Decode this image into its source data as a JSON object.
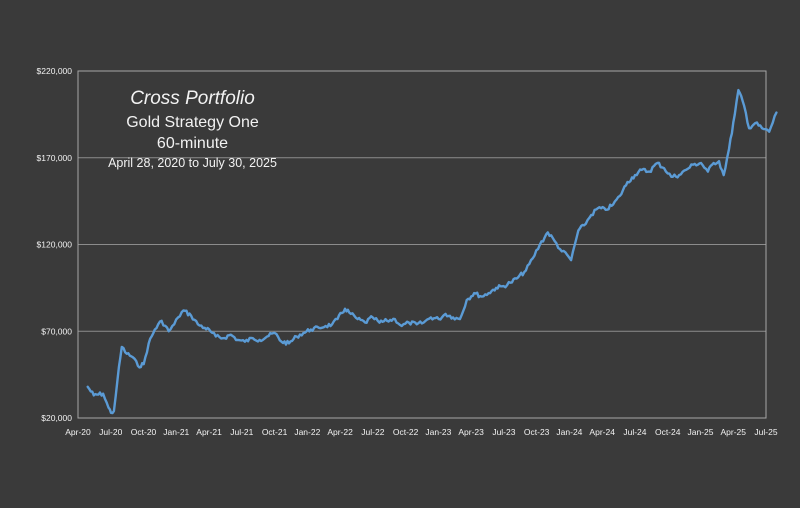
{
  "title_block": {
    "title": "Cross Portfolio",
    "subtitle_1": "Gold Strategy One",
    "subtitle_2": "60-minute",
    "date_range": "April 28,  2020 to July 30, 2025"
  },
  "colors": {
    "background": "#3a3a3a",
    "line": "#5b9bd5",
    "grid": "#8c8c8c",
    "text": "#f2f2f2"
  },
  "chart_data": {
    "type": "line",
    "title": "Cross Portfolio",
    "subtitle": "Gold Strategy One 60-minute April 28,  2020 to July 30, 2025",
    "xlabel": "",
    "ylabel": "",
    "ylim": [
      20000,
      220000
    ],
    "xlim": [
      "2020-04-01",
      "2025-07-01"
    ],
    "grid": "horizontal",
    "legend": "none",
    "x_tick_labels": [
      "Apr-20",
      "Jul-20",
      "Oct-20",
      "Jan-21",
      "Apr-21",
      "Jul-21",
      "Oct-21",
      "Jan-22",
      "Apr-22",
      "Jul-22",
      "Oct-22",
      "Jan-23",
      "Apr-23",
      "Jul-23",
      "Oct-23",
      "Jan-24",
      "Apr-24",
      "Jul-24",
      "Oct-24",
      "Jan-25",
      "Apr-25",
      "Jul-25"
    ],
    "y_tick_labels": [
      "$20,000",
      "$70,000",
      "$120,000",
      "$170,000",
      "$220,000"
    ],
    "y_tick_values": [
      20000,
      70000,
      120000,
      170000,
      220000
    ],
    "series": [
      {
        "x": [
          "2020-04-28",
          "2020-05-15",
          "2020-06-10",
          "2020-06-25",
          "2020-07-02",
          "2020-07-10",
          "2020-07-20",
          "2020-08-01",
          "2020-08-15",
          "2020-09-01",
          "2020-09-15",
          "2020-10-01",
          "2020-10-15",
          "2020-11-01",
          "2020-11-20",
          "2020-12-10",
          "2020-12-25",
          "2021-01-05",
          "2021-01-20",
          "2021-02-10",
          "2021-03-01",
          "2021-03-20",
          "2021-04-05",
          "2021-04-20",
          "2021-05-10",
          "2021-06-01",
          "2021-06-20",
          "2021-07-10",
          "2021-08-01",
          "2021-08-20",
          "2021-09-10",
          "2021-10-01",
          "2021-10-20",
          "2021-11-10",
          "2021-12-01",
          "2021-12-20",
          "2022-01-10",
          "2022-02-01",
          "2022-02-20",
          "2022-03-10",
          "2022-03-25",
          "2022-04-15",
          "2022-05-01",
          "2022-05-20",
          "2022-06-10",
          "2022-07-01",
          "2022-07-20",
          "2022-08-10",
          "2022-09-01",
          "2022-09-20",
          "2022-10-10",
          "2022-11-01",
          "2022-11-20",
          "2022-12-10",
          "2023-01-01",
          "2023-01-20",
          "2023-02-10",
          "2023-03-01",
          "2023-03-20",
          "2023-04-10",
          "2023-05-01",
          "2023-05-20",
          "2023-06-10",
          "2023-07-01",
          "2023-07-20",
          "2023-08-10",
          "2023-09-01",
          "2023-09-20",
          "2023-10-10",
          "2023-11-01",
          "2023-11-20",
          "2023-12-10",
          "2023-12-25",
          "2024-01-05",
          "2024-01-25",
          "2024-02-10",
          "2024-03-01",
          "2024-03-20",
          "2024-04-10",
          "2024-05-01",
          "2024-05-20",
          "2024-06-10",
          "2024-07-01",
          "2024-07-20",
          "2024-08-10",
          "2024-09-01",
          "2024-09-20",
          "2024-10-10",
          "2024-11-01",
          "2024-11-20",
          "2024-12-10",
          "2025-01-01",
          "2025-01-20",
          "2025-02-05",
          "2025-02-20",
          "2025-03-05",
          "2025-03-20",
          "2025-04-05",
          "2025-04-15",
          "2025-05-01",
          "2025-05-15",
          "2025-06-01",
          "2025-06-20",
          "2025-07-10",
          "2025-07-30"
        ],
        "values": [
          38000,
          33000,
          34000,
          26000,
          23000,
          24000,
          42000,
          61000,
          57000,
          55000,
          50000,
          51000,
          63000,
          71000,
          76000,
          70000,
          74000,
          78000,
          82000,
          79000,
          74000,
          72000,
          70000,
          67000,
          66000,
          68000,
          65000,
          64000,
          66000,
          65000,
          67000,
          69000,
          64000,
          63000,
          67000,
          69000,
          71000,
          72000,
          73000,
          74000,
          77000,
          83000,
          80000,
          77000,
          75000,
          78000,
          75000,
          76000,
          77000,
          73000,
          75000,
          74000,
          75000,
          78000,
          77000,
          80000,
          78000,
          77000,
          88000,
          92000,
          90000,
          92000,
          95000,
          96000,
          98000,
          101000,
          105000,
          112000,
          120000,
          127000,
          122000,
          116000,
          114000,
          111000,
          128000,
          131000,
          137000,
          141000,
          140000,
          143000,
          148000,
          156000,
          160000,
          163000,
          162000,
          167000,
          164000,
          159000,
          160000,
          163000,
          166000,
          167000,
          162000,
          167000,
          168000,
          160000,
          175000,
          195000,
          209000,
          200000,
          187000,
          190000,
          187000,
          185000,
          196000
        ]
      }
    ]
  }
}
